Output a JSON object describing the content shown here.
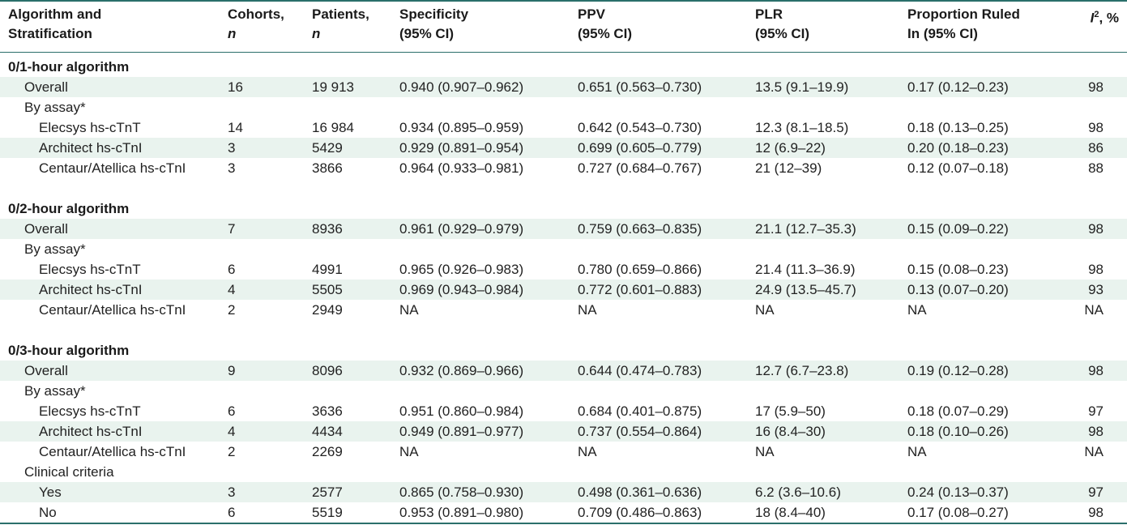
{
  "header": {
    "col0_line1": "Algorithm and",
    "col0_line2": "Stratification",
    "col1_line1": "Cohorts,",
    "col1_line2": "n",
    "col2_line1": "Patients,",
    "col2_line2": "n",
    "col3_line1": "Specificity",
    "col3_line2": "(95% CI)",
    "col4_line1": "PPV",
    "col4_line2": "(95% CI)",
    "col5_line1": "PLR",
    "col5_line2": "(95% CI)",
    "col6_line1": "Proportion Ruled",
    "col6_line2": "In (95% CI)",
    "col7_italic": "I",
    "col7_sup": "2",
    "col7_rest": ", %"
  },
  "rows": [
    {
      "label": "0/1-hour algorithm",
      "type": "section"
    },
    {
      "label": "Overall",
      "indent": 1,
      "cohorts": "16",
      "patients": "19 913",
      "spec": "0.940 (0.907–0.962)",
      "ppv": "0.651 (0.563–0.730)",
      "plr": "13.5 (9.1–19.9)",
      "prop": "0.17 (0.12–0.23)",
      "i2": "98",
      "shade": true
    },
    {
      "label": "By assay*",
      "indent": 1
    },
    {
      "label": "Elecsys hs-cTnT",
      "indent": 2,
      "cohorts": "14",
      "patients": "16 984",
      "spec": "0.934 (0.895–0.959)",
      "ppv": "0.642 (0.543–0.730)",
      "plr": "12.3 (8.1–18.5)",
      "prop": "0.18 (0.13–0.25)",
      "i2": "98"
    },
    {
      "label": "Architect hs-cTnI",
      "indent": 2,
      "cohorts": "3",
      "patients": "5429",
      "spec": "0.929 (0.891–0.954)",
      "ppv": "0.699 (0.605–0.779)",
      "plr": "12 (6.9–22)",
      "prop": "0.20 (0.18–0.23)",
      "i2": "86",
      "shade": true
    },
    {
      "label": "Centaur/Atellica hs-cTnI",
      "indent": 2,
      "cohorts": "3",
      "patients": "3866",
      "spec": "0.964 (0.933–0.981)",
      "ppv": "0.727 (0.684–0.767)",
      "plr": "21 (12–39)",
      "prop": "0.12 (0.07–0.18)",
      "i2": "88"
    },
    {
      "type": "blank"
    },
    {
      "label": "0/2-hour algorithm",
      "type": "section"
    },
    {
      "label": "Overall",
      "indent": 1,
      "cohorts": "7",
      "patients": "8936",
      "spec": "0.961 (0.929–0.979)",
      "ppv": "0.759 (0.663–0.835)",
      "plr": "21.1 (12.7–35.3)",
      "prop": "0.15 (0.09–0.22)",
      "i2": "98",
      "shade": true
    },
    {
      "label": "By assay*",
      "indent": 1
    },
    {
      "label": "Elecsys hs-cTnT",
      "indent": 2,
      "cohorts": "6",
      "patients": "4991",
      "spec": "0.965 (0.926–0.983)",
      "ppv": "0.780 (0.659–0.866)",
      "plr": "21.4 (11.3–36.9)",
      "prop": "0.15 (0.08–0.23)",
      "i2": "98"
    },
    {
      "label": "Architect hs-cTnI",
      "indent": 2,
      "cohorts": "4",
      "patients": "5505",
      "spec": "0.969 (0.943–0.984)",
      "ppv": "0.772 (0.601–0.883)",
      "plr": "24.9 (13.5–45.7)",
      "prop": "0.13 (0.07–0.20)",
      "i2": "93",
      "shade": true
    },
    {
      "label": "Centaur/Atellica hs-cTnI",
      "indent": 2,
      "cohorts": "2",
      "patients": "2949",
      "spec": "NA",
      "ppv": "NA",
      "plr": "NA",
      "prop": "NA",
      "i2": "NA"
    },
    {
      "type": "blank"
    },
    {
      "label": "0/3-hour algorithm",
      "type": "section"
    },
    {
      "label": "Overall",
      "indent": 1,
      "cohorts": "9",
      "patients": "8096",
      "spec": "0.932 (0.869–0.966)",
      "ppv": "0.644 (0.474–0.783)",
      "plr": "12.7 (6.7–23.8)",
      "prop": "0.19 (0.12–0.28)",
      "i2": "98",
      "shade": true
    },
    {
      "label": "By assay*",
      "indent": 1
    },
    {
      "label": "Elecsys hs-cTnT",
      "indent": 2,
      "cohorts": "6",
      "patients": "3636",
      "spec": "0.951 (0.860–0.984)",
      "ppv": "0.684 (0.401–0.875)",
      "plr": "17 (5.9–50)",
      "prop": "0.18 (0.07–0.29)",
      "i2": "97"
    },
    {
      "label": "Architect hs-cTnI",
      "indent": 2,
      "cohorts": "4",
      "patients": "4434",
      "spec": "0.949 (0.891–0.977)",
      "ppv": "0.737 (0.554–0.864)",
      "plr": "16 (8.4–30)",
      "prop": "0.18 (0.10–0.26)",
      "i2": "98",
      "shade": true
    },
    {
      "label": "Centaur/Atellica hs-cTnI",
      "indent": 2,
      "cohorts": "2",
      "patients": "2269",
      "spec": "NA",
      "ppv": "NA",
      "plr": "NA",
      "prop": "NA",
      "i2": "NA"
    },
    {
      "label": "Clinical criteria",
      "indent": 1
    },
    {
      "label": "Yes",
      "indent": 2,
      "cohorts": "3",
      "patients": "2577",
      "spec": "0.865 (0.758–0.930)",
      "ppv": "0.498 (0.361–0.636)",
      "plr": "6.2 (3.6–10.6)",
      "prop": "0.24 (0.13–0.37)",
      "i2": "97",
      "shade": true
    },
    {
      "label": "No",
      "indent": 2,
      "cohorts": "6",
      "patients": "5519",
      "spec": "0.953 (0.891–0.980)",
      "ppv": "0.709 (0.486–0.863)",
      "plr": "18 (8.4–40)",
      "prop": "0.17 (0.08–0.27)",
      "i2": "98"
    }
  ],
  "colors": {
    "accent": "#2a6f6a",
    "row_shade": "#e9f3ee"
  }
}
